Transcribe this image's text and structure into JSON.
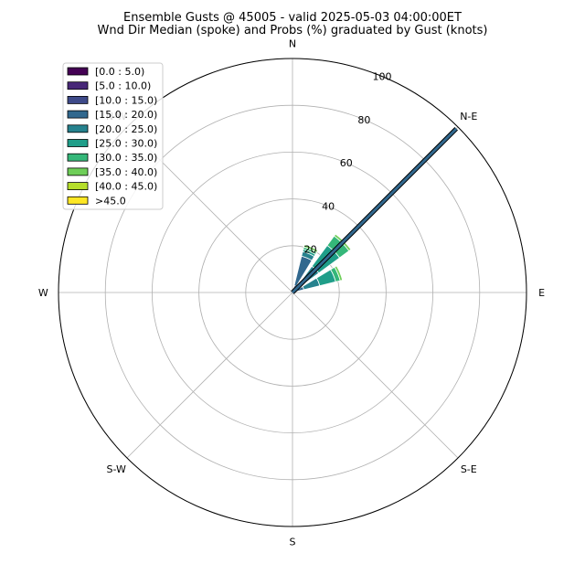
{
  "chart_data": {
    "type": "windrose",
    "title": "Ensemble Gusts @ 45005 - valid 2025-05-03 04:00:00ET",
    "subtitle": "Wnd Dir Median (spoke) and Probs (%) graduated by Gust (knots)",
    "direction_labels": [
      "N",
      "N-E",
      "E",
      "S-E",
      "S",
      "S-W",
      "W",
      "N-W"
    ],
    "radial_ticks": [
      "20",
      "40",
      "60",
      "80",
      "100"
    ],
    "rmax": 100,
    "grid": true,
    "legend_placement": "upper-left",
    "bins": [
      {
        "label": "[0.0 : 5.0)",
        "color": "#440154"
      },
      {
        "label": "[5.0 : 10.0)",
        "color": "#482878"
      },
      {
        "label": "[10.0 : 15.0)",
        "color": "#3e4a89"
      },
      {
        "label": "[15.0 : 20.0)",
        "color": "#31688e"
      },
      {
        "label": "[20.0 : 25.0)",
        "color": "#26828e"
      },
      {
        "label": "[25.0 : 30.0)",
        "color": "#1f9e89"
      },
      {
        "label": "[30.0 : 35.0)",
        "color": "#35b779"
      },
      {
        "label": "[35.0 : 40.0)",
        "color": "#6ece58"
      },
      {
        "label": "[40.0 : 45.0)",
        "color": "#b5de2b"
      },
      {
        "label": ">45.0",
        "color": "#fde725"
      }
    ],
    "sectors": [
      {
        "direction_deg": 22.5,
        "cumulative": [
          1,
          2,
          3,
          16,
          18,
          19,
          20,
          21,
          21,
          21
        ]
      },
      {
        "direction_deg": 45,
        "cumulative": [
          0,
          1,
          2,
          7,
          14,
          25,
          30,
          31,
          31,
          31
        ]
      },
      {
        "direction_deg": 67.5,
        "cumulative": [
          0,
          0,
          1,
          5,
          12,
          19,
          21,
          22,
          22,
          22
        ]
      }
    ],
    "median_spoke": {
      "direction_deg": 45,
      "value": 99,
      "color": "#31688e"
    }
  }
}
